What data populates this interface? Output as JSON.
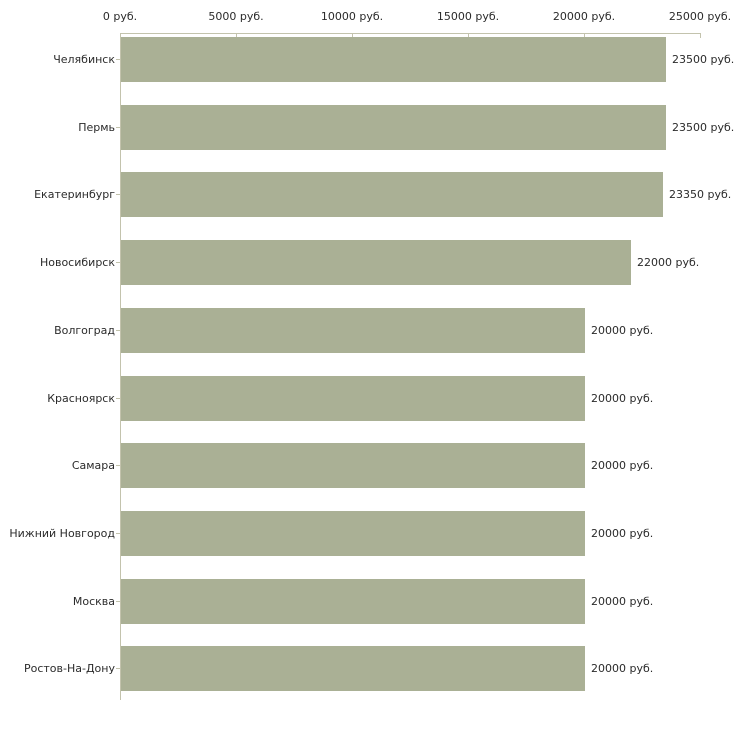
{
  "chart_data": {
    "type": "bar",
    "orientation": "horizontal",
    "title": "",
    "xlabel": "",
    "ylabel": "",
    "unit": "руб.",
    "grid": false,
    "legend": false,
    "xlim": [
      0,
      25000
    ],
    "x_ticks": [
      0,
      5000,
      10000,
      15000,
      20000,
      25000
    ],
    "x_tick_labels": [
      "0 руб.",
      "5000 руб.",
      "10000 руб.",
      "15000 руб.",
      "20000 руб.",
      "25000 руб."
    ],
    "categories": [
      "Челябинск",
      "Пермь",
      "Екатеринбург",
      "Новосибирск",
      "Волгоград",
      "Красноярск",
      "Самара",
      "Нижний Новгород",
      "Москва",
      "Ростов-На-Дону"
    ],
    "values": [
      23500,
      23500,
      23350,
      22000,
      20000,
      20000,
      20000,
      20000,
      20000,
      20000
    ],
    "value_labels": [
      "23500 руб.",
      "23500 руб.",
      "23350 руб.",
      "22000 руб.",
      "20000 руб.",
      "20000 руб.",
      "20000 руб.",
      "20000 руб.",
      "20000 руб.",
      "20000 руб."
    ],
    "colors": {
      "bar": "#aab095",
      "axis": "#c3c3ad",
      "text": "#2b2b2b",
      "background": "#ffffff"
    }
  }
}
